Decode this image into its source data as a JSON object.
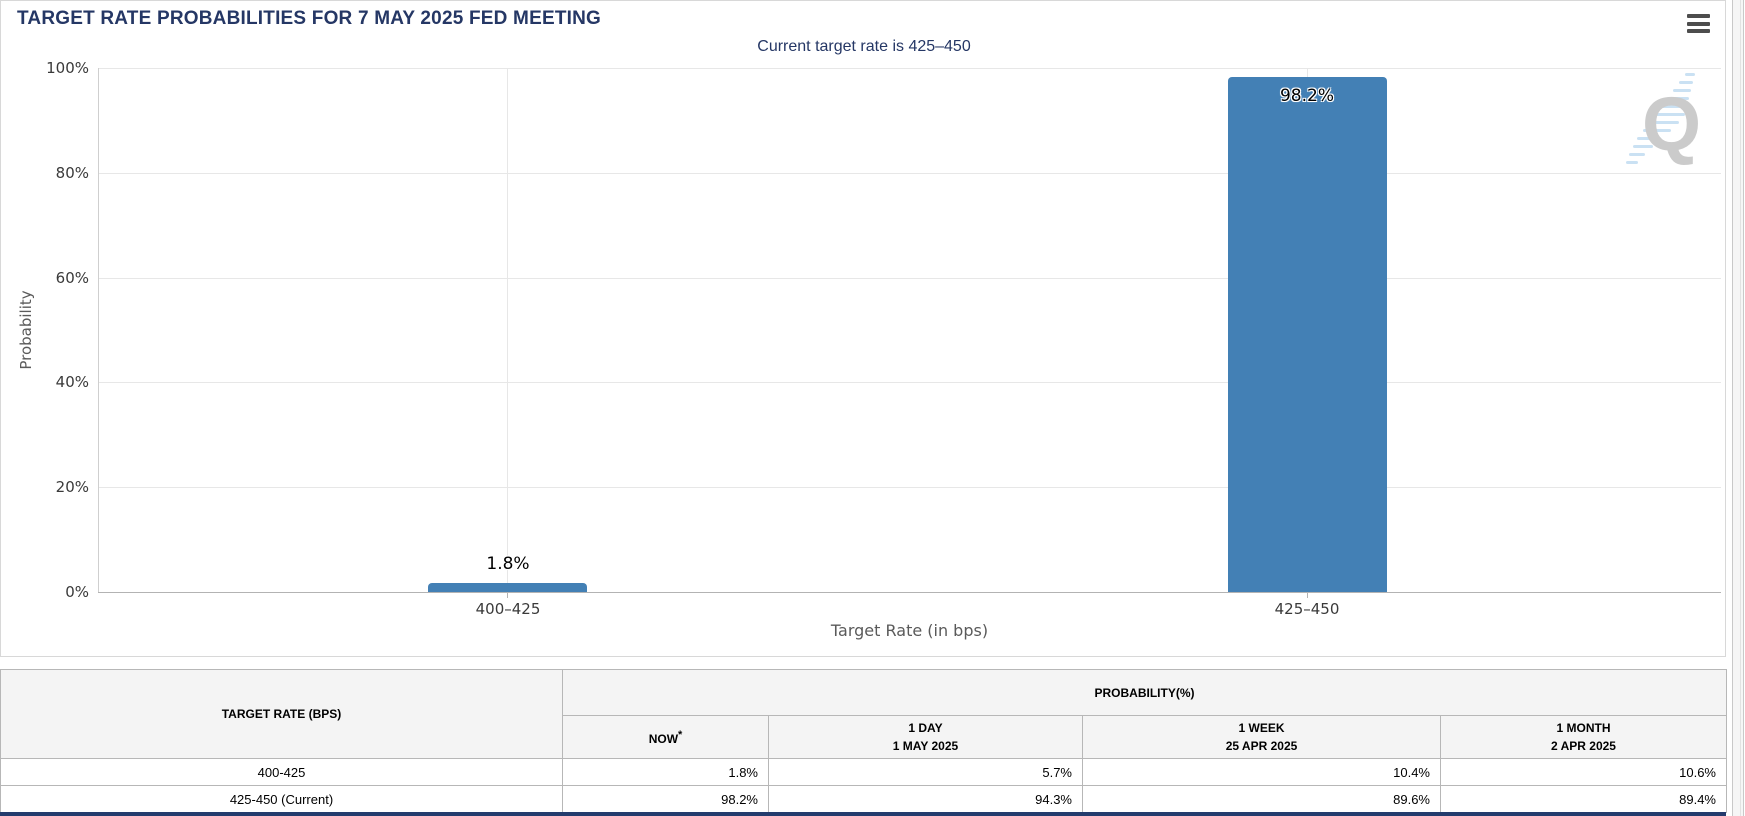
{
  "header": {
    "title": "TARGET RATE PROBABILITIES FOR 7 MAY 2025 FED MEETING"
  },
  "chart_data": {
    "type": "bar",
    "title": "Current target rate is 425–450",
    "categories": [
      "400–425",
      "425–450"
    ],
    "values": [
      1.8,
      98.2
    ],
    "value_labels": [
      "1.8%",
      "98.2%"
    ],
    "xlabel": "Target Rate (in bps)",
    "ylabel": "Probability",
    "ylim": [
      0,
      100
    ],
    "yticks": [
      "0%",
      "20%",
      "40%",
      "60%",
      "80%",
      "100%"
    ],
    "grid": true,
    "legend": "none",
    "bar_color": "#4380b5",
    "watermark_letter": "Q"
  },
  "table": {
    "rate_header": "TARGET RATE (BPS)",
    "group_header": "PROBABILITY(%)",
    "period_headers": [
      {
        "line1": "NOW",
        "sup": "*",
        "line2": ""
      },
      {
        "line1": "1 DAY",
        "sup": "",
        "line2": "1 MAY 2025"
      },
      {
        "line1": "1 WEEK",
        "sup": "",
        "line2": "25 APR 2025"
      },
      {
        "line1": "1 MONTH",
        "sup": "",
        "line2": "2 APR 2025"
      }
    ],
    "rows": [
      {
        "rate": "400-425",
        "now": "1.8%",
        "one_day": "5.7%",
        "one_week": "10.4%",
        "one_month": "10.6%"
      },
      {
        "rate": "425-450 (Current)",
        "now": "98.2%",
        "one_day": "94.3%",
        "one_week": "89.6%",
        "one_month": "89.4%"
      }
    ]
  },
  "colors": {
    "accent_navy": "#253765",
    "bar_blue": "#4380b5",
    "now_highlight": "#f9f9d2"
  }
}
